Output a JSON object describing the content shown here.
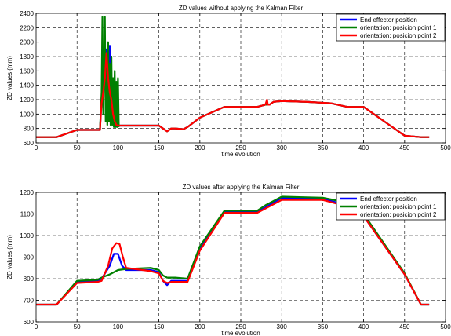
{
  "chart_data": [
    {
      "type": "line",
      "title": "ZD values without applying the Kalman Filter",
      "xlabel": "time evolution",
      "ylabel": "ZD values (mm)",
      "xlim": [
        0,
        500
      ],
      "ylim": [
        600,
        2400
      ],
      "xticks": [
        0,
        50,
        100,
        150,
        200,
        250,
        300,
        350,
        400,
        450,
        500
      ],
      "yticks": [
        600,
        800,
        1000,
        1200,
        1400,
        1600,
        1800,
        2000,
        2200,
        2400
      ],
      "grid": true,
      "legend": "top-right",
      "series": [
        {
          "name": "End effector position",
          "color": "#0000ff",
          "x": [
            0,
            25,
            50,
            78,
            80,
            82,
            84,
            86,
            88,
            90,
            92,
            94,
            96,
            98,
            100,
            102,
            150,
            155,
            160,
            165,
            170,
            180,
            185,
            200,
            230,
            250,
            270,
            280,
            285,
            290,
            300,
            330,
            360,
            380,
            400,
            425,
            450,
            470,
            480
          ],
          "y": [
            680,
            680,
            780,
            780,
            1200,
            1300,
            1500,
            1900,
            1000,
            1950,
            900,
            1400,
            850,
            1100,
            840,
            840,
            840,
            800,
            760,
            800,
            800,
            790,
            820,
            950,
            1100,
            1100,
            1100,
            1130,
            1130,
            1170,
            1180,
            1170,
            1150,
            1100,
            1100,
            900,
            700,
            680,
            680
          ]
        },
        {
          "name": "orientation: posicion point 1",
          "color": "#008000",
          "x": [
            0,
            25,
            50,
            78,
            80,
            81,
            82,
            83,
            84,
            85,
            86,
            87,
            88,
            89,
            90,
            91,
            92,
            93,
            94,
            95,
            96,
            97,
            98,
            99,
            100,
            101,
            102,
            150,
            155,
            160,
            165,
            170,
            180,
            185,
            200,
            230,
            250,
            270,
            280,
            285,
            290,
            300,
            330,
            360,
            380,
            400,
            425,
            450,
            470,
            480
          ],
          "y": [
            680,
            680,
            780,
            780,
            1300,
            2350,
            1000,
            1600,
            2350,
            900,
            1800,
            850,
            2000,
            900,
            1700,
            850,
            1800,
            850,
            1500,
            820,
            1600,
            820,
            1450,
            820,
            1500,
            830,
            840,
            840,
            800,
            760,
            800,
            800,
            790,
            820,
            950,
            1100,
            1100,
            1100,
            1130,
            1130,
            1170,
            1180,
            1170,
            1150,
            1100,
            1100,
            900,
            700,
            680,
            680
          ]
        },
        {
          "name": "orientation: posicion point 2",
          "color": "#ff0000",
          "x": [
            0,
            25,
            50,
            78,
            80,
            82,
            84,
            86,
            88,
            90,
            92,
            94,
            96,
            98,
            100,
            102,
            150,
            155,
            160,
            165,
            170,
            180,
            185,
            200,
            230,
            250,
            270,
            280,
            282,
            283,
            285,
            290,
            300,
            330,
            360,
            380,
            400,
            425,
            450,
            470,
            480
          ],
          "y": [
            680,
            680,
            780,
            780,
            1150,
            1300,
            1500,
            1850,
            1500,
            1300,
            1200,
            1000,
            900,
            850,
            840,
            840,
            840,
            800,
            760,
            800,
            800,
            790,
            820,
            950,
            1100,
            1100,
            1100,
            1130,
            1200,
            1130,
            1130,
            1170,
            1180,
            1170,
            1150,
            1100,
            1100,
            900,
            700,
            680,
            680
          ]
        }
      ]
    },
    {
      "type": "line",
      "title": "ZD values after applying the Kalman Filter",
      "xlabel": "time evolution",
      "ylabel": "ZD values (mm)",
      "xlim": [
        0,
        500
      ],
      "ylim": [
        600,
        1200
      ],
      "xticks": [
        0,
        50,
        100,
        150,
        200,
        250,
        300,
        350,
        400,
        450,
        500
      ],
      "yticks": [
        600,
        700,
        800,
        900,
        1000,
        1100,
        1200
      ],
      "grid": true,
      "legend": "top-right",
      "series": [
        {
          "name": "End effector position",
          "color": "#0000ff",
          "x": [
            0,
            25,
            50,
            75,
            80,
            90,
            95,
            100,
            105,
            110,
            140,
            150,
            155,
            160,
            165,
            170,
            185,
            200,
            230,
            270,
            280,
            300,
            350,
            370,
            400,
            450,
            470,
            480
          ],
          "y": [
            680,
            680,
            785,
            790,
            800,
            860,
            915,
            915,
            860,
            840,
            840,
            830,
            790,
            770,
            790,
            790,
            790,
            940,
            1110,
            1110,
            1130,
            1175,
            1170,
            1150,
            1090,
            820,
            680,
            680
          ]
        },
        {
          "name": "orientation: posicion point 1",
          "color": "#008000",
          "x": [
            0,
            25,
            50,
            75,
            80,
            90,
            100,
            110,
            140,
            150,
            155,
            160,
            165,
            170,
            185,
            200,
            230,
            270,
            280,
            300,
            350,
            370,
            400,
            450,
            470,
            480
          ],
          "y": [
            680,
            680,
            790,
            795,
            805,
            820,
            840,
            845,
            850,
            840,
            815,
            805,
            805,
            805,
            800,
            950,
            1115,
            1115,
            1140,
            1180,
            1175,
            1160,
            1100,
            825,
            680,
            680
          ]
        },
        {
          "name": "orientation: posicion point 2",
          "color": "#ff0000",
          "x": [
            0,
            25,
            50,
            75,
            80,
            88,
            93,
            98,
            102,
            106,
            110,
            120,
            140,
            150,
            155,
            160,
            165,
            170,
            185,
            200,
            230,
            270,
            280,
            300,
            350,
            370,
            400,
            450,
            470,
            480
          ],
          "y": [
            680,
            680,
            780,
            785,
            790,
            860,
            940,
            965,
            960,
            900,
            850,
            845,
            835,
            825,
            790,
            780,
            785,
            785,
            785,
            930,
            1105,
            1105,
            1125,
            1165,
            1165,
            1145,
            1090,
            820,
            680,
            680
          ]
        }
      ]
    }
  ]
}
